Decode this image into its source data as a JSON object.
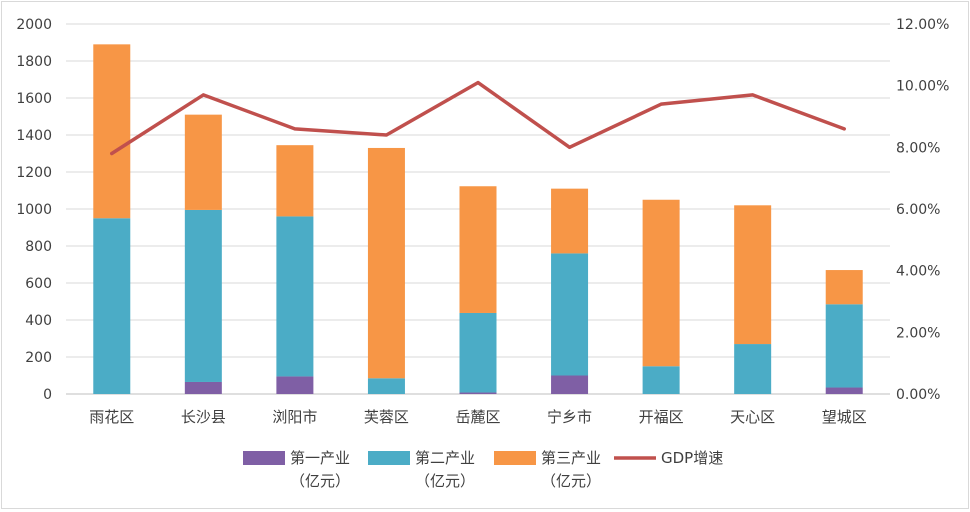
{
  "chart_data": {
    "type": "bar",
    "stacked": true,
    "categories": [
      "雨花区",
      "长沙县",
      "浏阳市",
      "芙蓉区",
      "岳麓区",
      "宁乡市",
      "开福区",
      "天心区",
      "望城区"
    ],
    "series": [
      {
        "name": "第一产业（亿元）",
        "type": "bar",
        "axis": "left",
        "color": "#7f5fa5",
        "values": [
          0,
          65,
          95,
          0,
          8,
          100,
          0,
          0,
          35
        ]
      },
      {
        "name": "第二产业（亿元）",
        "type": "bar",
        "axis": "left",
        "color": "#4bacc6",
        "values": [
          950,
          930,
          865,
          85,
          430,
          660,
          150,
          270,
          450
        ]
      },
      {
        "name": "第三产业（亿元）",
        "type": "bar",
        "axis": "left",
        "color": "#f79646",
        "values": [
          940,
          515,
          385,
          1245,
          685,
          350,
          900,
          750,
          185
        ]
      },
      {
        "name": "GDP增速",
        "type": "line",
        "axis": "right",
        "color": "#c0504d",
        "values": [
          7.8,
          9.7,
          8.6,
          8.4,
          10.1,
          8.0,
          9.4,
          9.7,
          8.6
        ]
      }
    ],
    "y_left": {
      "min": 0,
      "max": 2000,
      "step": 200,
      "ticks": [
        "0",
        "200",
        "400",
        "600",
        "800",
        "1000",
        "1200",
        "1400",
        "1600",
        "1800",
        "2000"
      ]
    },
    "y_right": {
      "min": 0,
      "max": 12,
      "step": 2,
      "ticks": [
        "0.00%",
        "2.00%",
        "4.00%",
        "6.00%",
        "8.00%",
        "10.00%",
        "12.00%"
      ]
    },
    "grid": true,
    "legend_position": "bottom",
    "legend": [
      {
        "label": "第一产业",
        "sub": "（亿元）",
        "color": "#7f5fa5",
        "kind": "box"
      },
      {
        "label": "第二产业",
        "sub": "（亿元）",
        "color": "#4bacc6",
        "kind": "box"
      },
      {
        "label": "第三产业",
        "sub": "（亿元）",
        "color": "#f79646",
        "kind": "box"
      },
      {
        "label": "GDP增速",
        "sub": "",
        "color": "#c0504d",
        "kind": "line"
      }
    ]
  }
}
